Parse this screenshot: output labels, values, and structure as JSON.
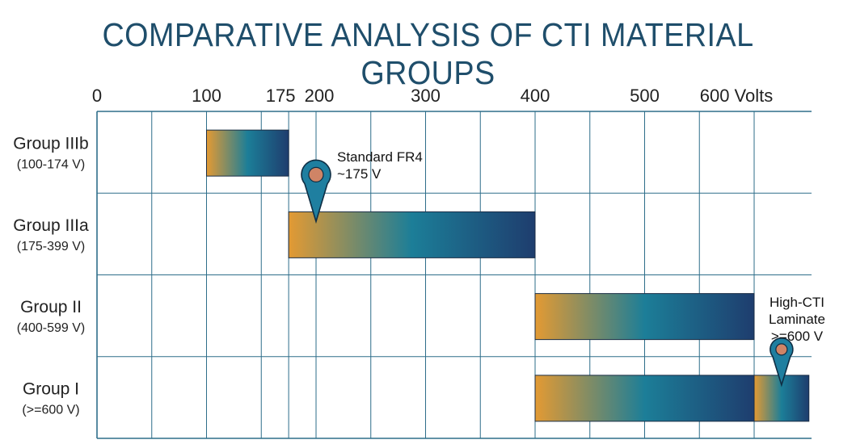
{
  "chart_data": {
    "type": "bar",
    "title": "COMPARATIVE ANALYSIS OF CTI MATERIAL GROUPS",
    "xlim": [
      0,
      650
    ],
    "x_ticks": [
      {
        "value": 0,
        "label": "0"
      },
      {
        "value": 100,
        "label": "100"
      },
      {
        "value": 175,
        "label": "175"
      },
      {
        "value": 200,
        "label": "200"
      },
      {
        "value": 300,
        "label": "300"
      },
      {
        "value": 400,
        "label": "400"
      },
      {
        "value": 500,
        "label": "500"
      },
      {
        "value": 600,
        "label": "600 Volts"
      }
    ],
    "grid_x": [
      0,
      50,
      100,
      150,
      175,
      200,
      250,
      300,
      350,
      400,
      450,
      500,
      550,
      600
    ],
    "categories": [
      {
        "name": "Group IIIb",
        "range_label": "(100-174 V)",
        "start": 100,
        "end": 175
      },
      {
        "name": "Group IIIa",
        "range_label": "(175-399 V)",
        "start": 175,
        "end": 400
      },
      {
        "name": "Group II",
        "range_label": "(400-599 V)",
        "start": 400,
        "end": 600
      },
      {
        "name": "Group I",
        "range_label": "(>=600 V)",
        "start": 400,
        "end": 650,
        "segment_break": 600
      }
    ],
    "annotations": [
      {
        "lines": [
          "Standard FR4",
          "~175 V"
        ],
        "x": 200,
        "row": 1
      },
      {
        "lines": [
          "High-CTI",
          "Laminate",
          ">=600 V"
        ],
        "x": 625,
        "row": 3
      }
    ],
    "colors": {
      "grid": "#2e6e8a",
      "bar_start": "#e39a33",
      "bar_mid": "#1c7e98",
      "bar_end": "#1e3d6e",
      "marker_fill": "#1f7fa0",
      "marker_dot": "#cf8466"
    }
  }
}
